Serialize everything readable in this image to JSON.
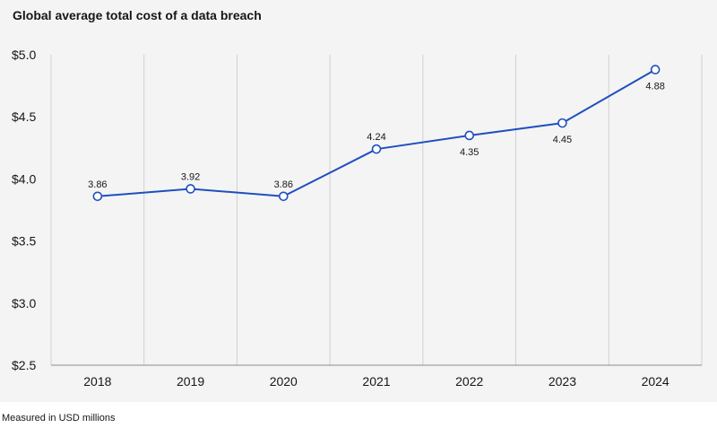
{
  "chart_data": {
    "type": "line",
    "title": "Global average total cost of a data breach",
    "footnote": "Measured in USD millions",
    "categories": [
      "2018",
      "2019",
      "2020",
      "2021",
      "2022",
      "2023",
      "2024"
    ],
    "values": [
      3.86,
      3.92,
      3.86,
      4.24,
      4.35,
      4.45,
      4.88
    ],
    "data_labels": [
      "3.86",
      "3.92",
      "3.86",
      "4.24",
      "4.35",
      "4.45",
      "4.88"
    ],
    "label_position": [
      "above",
      "above",
      "above",
      "above",
      "below",
      "below",
      "below"
    ],
    "ylim": [
      2.5,
      5.0
    ],
    "yticks": [
      2.5,
      3.0,
      3.5,
      4.0,
      4.5,
      5.0
    ],
    "ytick_labels": [
      "$2.5",
      "$3.0",
      "$3.5",
      "$4.0",
      "$4.5",
      "$5.0"
    ],
    "grid": "vertical",
    "colors": {
      "line": "#1f4fbf",
      "marker_fill": "#ffffff",
      "plot_background": "#f4f4f4",
      "grid": "#d0d0d0",
      "axis": "#8d8d8d",
      "text": "#161616"
    }
  }
}
